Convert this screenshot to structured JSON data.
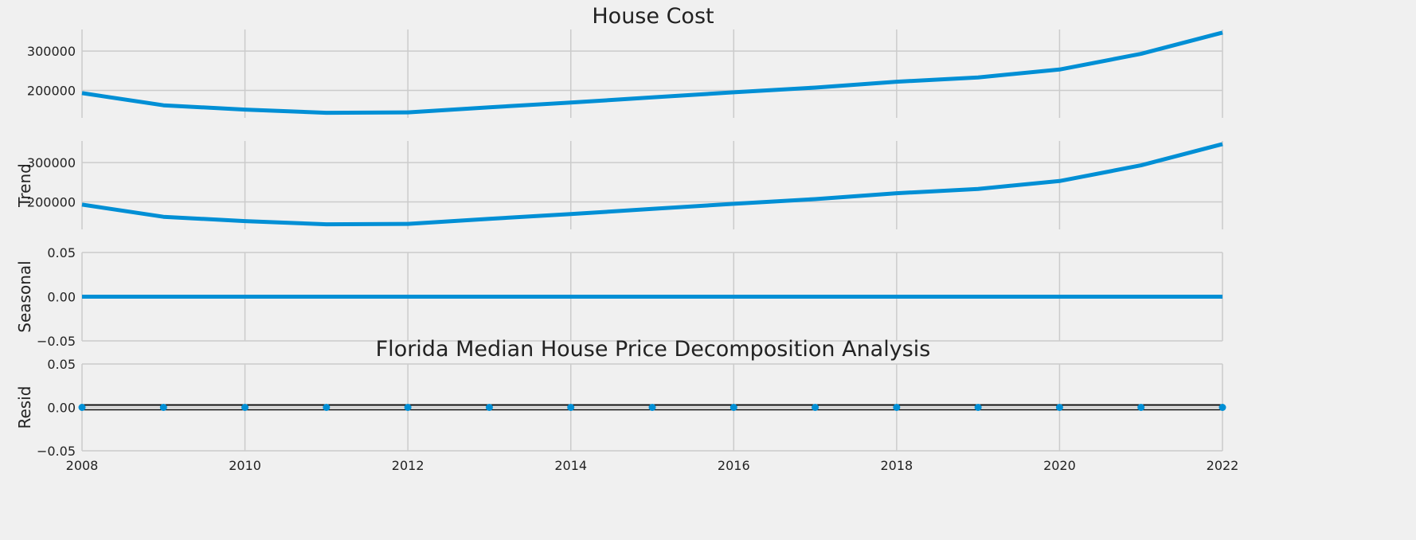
{
  "chart_data": {
    "type": "line",
    "title": "House Cost",
    "overlay_title": "Florida Median House Price Decomposition Analysis",
    "x": [
      2008,
      2009,
      2010,
      2011,
      2012,
      2013,
      2014,
      2015,
      2016,
      2017,
      2018,
      2019,
      2020,
      2021,
      2022
    ],
    "xlim": [
      2008,
      2022
    ],
    "xticks": [
      "2008",
      "2010",
      "2012",
      "2014",
      "2016",
      "2018",
      "2020",
      "2022"
    ],
    "grid": true,
    "accent_color": "#008fd5",
    "panels": [
      {
        "ylabel": "",
        "style": "line",
        "ylim": [
          130000,
          355000
        ],
        "yticks": [
          200000,
          300000
        ],
        "ytick_labels": [
          "200000",
          "300000"
        ],
        "values": [
          193000,
          162000,
          151000,
          143000,
          144000,
          157000,
          169000,
          182000,
          195000,
          207000,
          222000,
          233000,
          253000,
          293000,
          347000
        ]
      },
      {
        "ylabel": "Trend",
        "style": "line",
        "ylim": [
          130000,
          355000
        ],
        "yticks": [
          200000,
          300000
        ],
        "ytick_labels": [
          "200000",
          "300000"
        ],
        "values": [
          193000,
          162000,
          151000,
          143000,
          144000,
          157000,
          169000,
          182000,
          195000,
          207000,
          222000,
          233000,
          253000,
          293000,
          347000
        ]
      },
      {
        "ylabel": "Seasonal",
        "style": "line",
        "ylim": [
          -0.05,
          0.05
        ],
        "yticks": [
          -0.05,
          0.0,
          0.05
        ],
        "ytick_labels": [
          "−0.05",
          "0.00",
          "0.05"
        ],
        "values": [
          0,
          0,
          0,
          0,
          0,
          0,
          0,
          0,
          0,
          0,
          0,
          0,
          0,
          0,
          0
        ]
      },
      {
        "ylabel": "Resid",
        "style": "dots",
        "ylim": [
          -0.05,
          0.05
        ],
        "yticks": [
          -0.05,
          0.0,
          0.05
        ],
        "ytick_labels": [
          "−0.05",
          "0.00",
          "0.05"
        ],
        "values": [
          0,
          0,
          0,
          0,
          0,
          0,
          0,
          0,
          0,
          0,
          0,
          0,
          0,
          0,
          0
        ]
      }
    ]
  }
}
